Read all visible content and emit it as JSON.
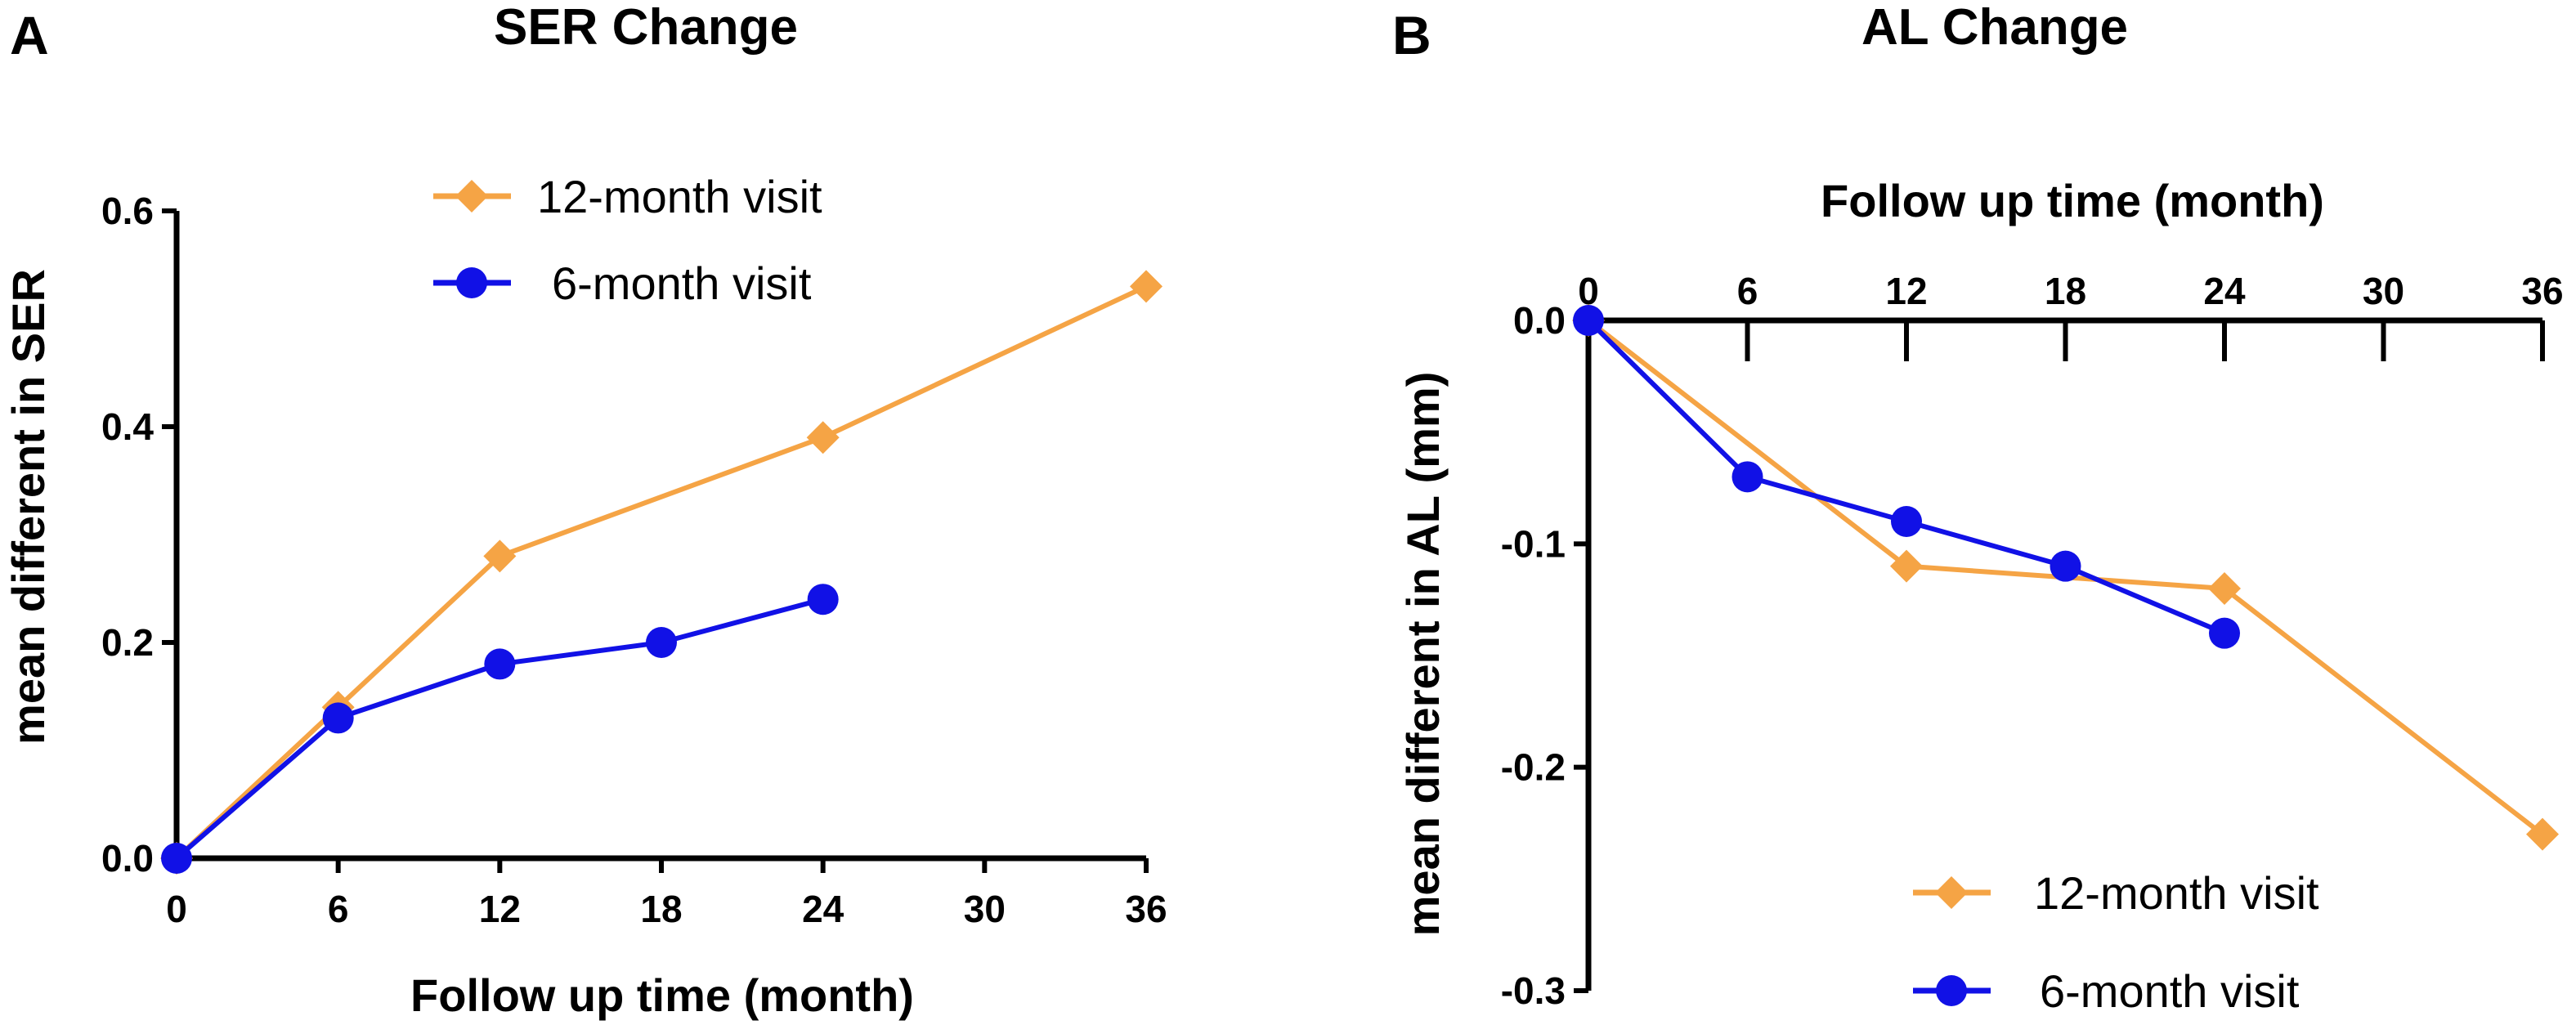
{
  "colors": {
    "series_12": "#F5A445",
    "series_6": "#1111E6"
  },
  "chart_data": [
    {
      "panel": "A",
      "type": "line",
      "title": "SER Change",
      "xlabel": "Follow up time (month)",
      "ylabel": "mean different in SER",
      "xlim": [
        0,
        36
      ],
      "ylim": [
        0,
        0.6
      ],
      "xticks": [
        0,
        6,
        12,
        18,
        24,
        30,
        36
      ],
      "xtick_labels": [
        "0",
        "6",
        "12",
        "18",
        "24",
        "30",
        "36"
      ],
      "yticks": [
        0,
        0.2,
        0.4,
        0.6
      ],
      "ytick_labels": [
        "0.0",
        "0.2",
        "0.4",
        "0.6"
      ],
      "x_axis_position": "bottom",
      "legend_position": "top-center",
      "series": [
        {
          "name": "12-month visit",
          "marker": "diamond",
          "x": [
            0,
            6,
            12,
            24,
            36
          ],
          "y": [
            0,
            0.14,
            0.28,
            0.39,
            0.53
          ]
        },
        {
          "name": "6-month visit",
          "marker": "circle",
          "x": [
            0,
            6,
            12,
            18,
            24
          ],
          "y": [
            0,
            0.13,
            0.18,
            0.2,
            0.24
          ]
        }
      ]
    },
    {
      "panel": "B",
      "type": "line",
      "title": "AL Change",
      "xlabel": "Follow up time (month)",
      "ylabel": "mean different in AL (mm)",
      "xlim": [
        0,
        36
      ],
      "ylim": [
        -0.3,
        0
      ],
      "xticks": [
        0,
        6,
        12,
        18,
        24,
        30,
        36
      ],
      "xtick_labels": [
        "0",
        "6",
        "12",
        "18",
        "24",
        "30",
        "36"
      ],
      "yticks": [
        0,
        -0.1,
        -0.2,
        -0.3
      ],
      "ytick_labels": [
        "0.0",
        "-0.1",
        "-0.2",
        "-0.3"
      ],
      "x_axis_position": "top",
      "legend_position": "bottom-right",
      "series": [
        {
          "name": "12-month visit",
          "marker": "diamond",
          "x": [
            0,
            12,
            24,
            36
          ],
          "y": [
            0,
            -0.11,
            -0.12,
            -0.23
          ]
        },
        {
          "name": "6-month visit",
          "marker": "circle",
          "x": [
            0,
            6,
            12,
            18,
            24
          ],
          "y": [
            0,
            -0.07,
            -0.09,
            -0.11,
            -0.14
          ]
        }
      ]
    }
  ]
}
